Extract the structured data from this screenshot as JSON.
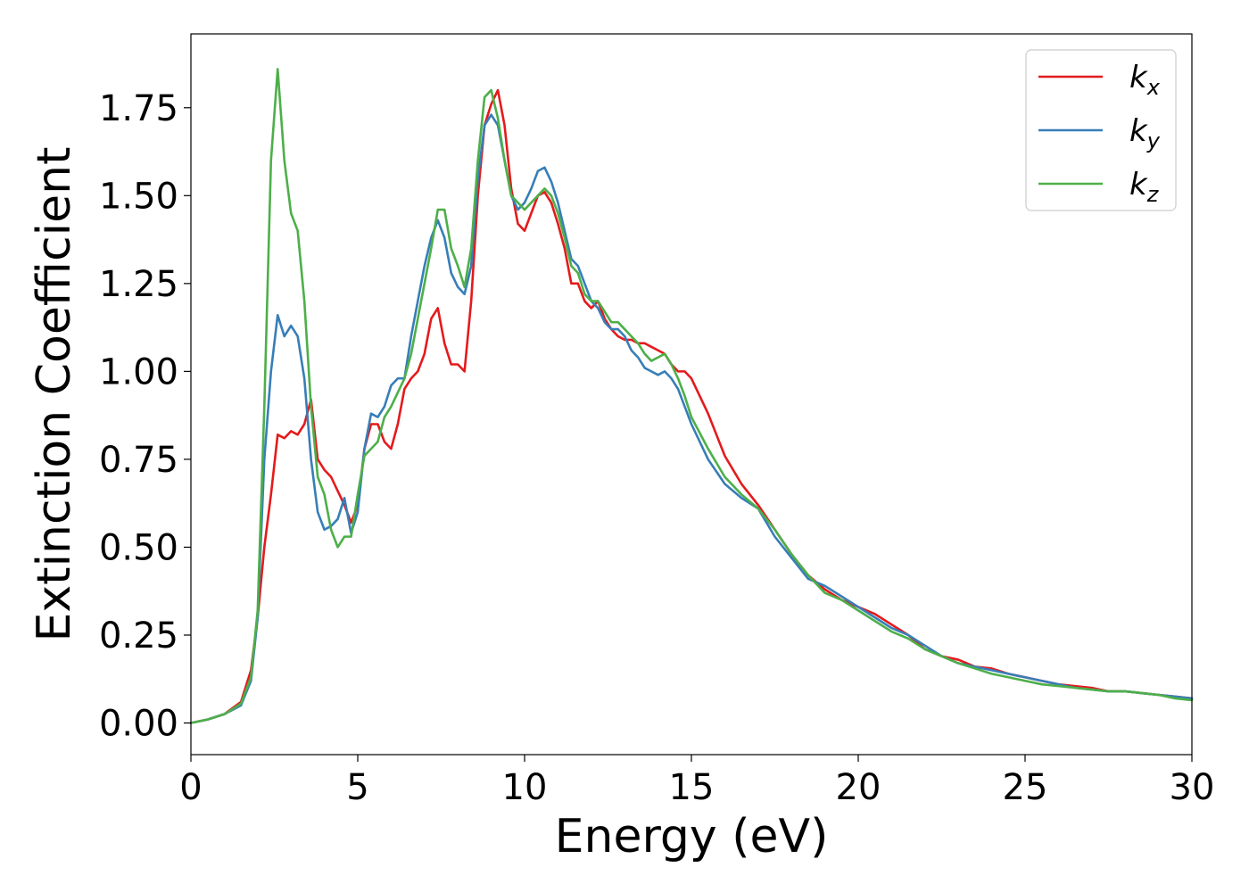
{
  "chart_data": {
    "type": "line",
    "title": "",
    "xlabel": "Energy (eV)",
    "ylabel": "Extinction Coefficient",
    "xlim": [
      0,
      30
    ],
    "ylim": [
      -0.09,
      1.96
    ],
    "xticks": [
      0,
      5,
      10,
      15,
      20,
      25,
      30
    ],
    "xtick_labels": [
      "0",
      "5",
      "10",
      "15",
      "20",
      "25",
      "30"
    ],
    "yticks": [
      0.0,
      0.25,
      0.5,
      0.75,
      1.0,
      1.25,
      1.5,
      1.75
    ],
    "ytick_labels": [
      "0.00",
      "0.25",
      "0.50",
      "0.75",
      "1.00",
      "1.25",
      "1.50",
      "1.75"
    ],
    "grid": false,
    "legend_position": "top-right",
    "series": [
      {
        "name": "k_x",
        "legend_base": "k",
        "legend_sub": "x",
        "color": "#e41a1c",
        "x": [
          0,
          0.5,
          1.0,
          1.5,
          1.8,
          2.0,
          2.2,
          2.4,
          2.6,
          2.8,
          3.0,
          3.2,
          3.4,
          3.6,
          3.8,
          4.0,
          4.2,
          4.4,
          4.6,
          4.8,
          5.0,
          5.2,
          5.4,
          5.6,
          5.8,
          6.0,
          6.2,
          6.4,
          6.6,
          6.8,
          7.0,
          7.2,
          7.4,
          7.6,
          7.8,
          8.0,
          8.2,
          8.4,
          8.6,
          8.8,
          9.0,
          9.2,
          9.4,
          9.6,
          9.8,
          10.0,
          10.2,
          10.4,
          10.6,
          10.8,
          11.0,
          11.2,
          11.4,
          11.6,
          11.8,
          12.0,
          12.2,
          12.4,
          12.6,
          12.8,
          13.0,
          13.2,
          13.4,
          13.6,
          13.8,
          14.0,
          14.2,
          14.4,
          14.6,
          14.8,
          15.0,
          15.5,
          16.0,
          16.5,
          17.0,
          17.5,
          18.0,
          18.5,
          19.0,
          19.5,
          20.0,
          20.5,
          21.0,
          21.5,
          22.0,
          22.5,
          23.0,
          23.5,
          24.0,
          24.5,
          25.0,
          25.5,
          26.0,
          26.5,
          27.0,
          27.5,
          28.0,
          28.5,
          29.0,
          29.5,
          30.0
        ],
        "y": [
          0.0,
          0.01,
          0.025,
          0.06,
          0.15,
          0.3,
          0.5,
          0.65,
          0.82,
          0.81,
          0.83,
          0.82,
          0.85,
          0.92,
          0.75,
          0.72,
          0.7,
          0.66,
          0.62,
          0.57,
          0.62,
          0.78,
          0.85,
          0.85,
          0.8,
          0.78,
          0.85,
          0.95,
          0.98,
          1.0,
          1.05,
          1.15,
          1.18,
          1.08,
          1.02,
          1.02,
          1.0,
          1.2,
          1.5,
          1.7,
          1.76,
          1.8,
          1.7,
          1.52,
          1.42,
          1.4,
          1.45,
          1.5,
          1.51,
          1.48,
          1.42,
          1.35,
          1.25,
          1.25,
          1.2,
          1.18,
          1.2,
          1.15,
          1.12,
          1.1,
          1.09,
          1.09,
          1.08,
          1.08,
          1.07,
          1.06,
          1.05,
          1.02,
          1.0,
          1.0,
          0.98,
          0.88,
          0.76,
          0.68,
          0.62,
          0.55,
          0.48,
          0.42,
          0.38,
          0.35,
          0.33,
          0.31,
          0.28,
          0.25,
          0.21,
          0.19,
          0.18,
          0.16,
          0.155,
          0.14,
          0.13,
          0.12,
          0.11,
          0.105,
          0.1,
          0.09,
          0.09,
          0.085,
          0.08,
          0.075,
          0.07
        ]
      },
      {
        "name": "k_y",
        "legend_base": "k",
        "legend_sub": "y",
        "color": "#377eb8",
        "x": [
          0,
          0.5,
          1.0,
          1.5,
          1.8,
          2.0,
          2.2,
          2.4,
          2.6,
          2.8,
          3.0,
          3.2,
          3.4,
          3.6,
          3.8,
          4.0,
          4.2,
          4.4,
          4.6,
          4.8,
          5.0,
          5.2,
          5.4,
          5.6,
          5.8,
          6.0,
          6.2,
          6.4,
          6.6,
          6.8,
          7.0,
          7.2,
          7.4,
          7.6,
          7.8,
          8.0,
          8.2,
          8.4,
          8.6,
          8.8,
          9.0,
          9.2,
          9.4,
          9.6,
          9.8,
          10.0,
          10.2,
          10.4,
          10.6,
          10.8,
          11.0,
          11.2,
          11.4,
          11.6,
          11.8,
          12.0,
          12.2,
          12.4,
          12.6,
          12.8,
          13.0,
          13.2,
          13.4,
          13.6,
          13.8,
          14.0,
          14.2,
          14.4,
          14.6,
          14.8,
          15.0,
          15.5,
          16.0,
          16.5,
          17.0,
          17.5,
          18.0,
          18.5,
          19.0,
          19.5,
          20.0,
          20.5,
          21.0,
          21.5,
          22.0,
          22.5,
          23.0,
          23.5,
          24.0,
          24.5,
          25.0,
          25.5,
          26.0,
          26.5,
          27.0,
          27.5,
          28.0,
          28.5,
          29.0,
          29.5,
          30.0
        ],
        "y": [
          0.0,
          0.01,
          0.025,
          0.05,
          0.12,
          0.3,
          0.75,
          1.0,
          1.16,
          1.1,
          1.13,
          1.1,
          0.98,
          0.75,
          0.6,
          0.55,
          0.56,
          0.58,
          0.64,
          0.54,
          0.6,
          0.78,
          0.88,
          0.87,
          0.9,
          0.96,
          0.98,
          0.98,
          1.1,
          1.2,
          1.3,
          1.38,
          1.43,
          1.38,
          1.28,
          1.24,
          1.22,
          1.3,
          1.55,
          1.7,
          1.73,
          1.7,
          1.6,
          1.5,
          1.46,
          1.48,
          1.52,
          1.57,
          1.58,
          1.54,
          1.48,
          1.4,
          1.32,
          1.3,
          1.25,
          1.2,
          1.18,
          1.14,
          1.12,
          1.12,
          1.1,
          1.06,
          1.04,
          1.01,
          1.0,
          0.99,
          1.0,
          0.98,
          0.95,
          0.9,
          0.85,
          0.75,
          0.68,
          0.64,
          0.61,
          0.53,
          0.47,
          0.41,
          0.39,
          0.36,
          0.33,
          0.3,
          0.27,
          0.25,
          0.22,
          0.19,
          0.17,
          0.16,
          0.15,
          0.14,
          0.13,
          0.12,
          0.11,
          0.1,
          0.095,
          0.09,
          0.09,
          0.085,
          0.08,
          0.075,
          0.07
        ]
      },
      {
        "name": "k_z",
        "legend_base": "k",
        "legend_sub": "z",
        "color": "#4daf4a",
        "x": [
          0,
          0.5,
          1.0,
          1.5,
          1.8,
          2.0,
          2.2,
          2.4,
          2.6,
          2.8,
          3.0,
          3.2,
          3.4,
          3.6,
          3.8,
          4.0,
          4.2,
          4.4,
          4.6,
          4.8,
          5.0,
          5.2,
          5.4,
          5.6,
          5.8,
          6.0,
          6.2,
          6.4,
          6.6,
          6.8,
          7.0,
          7.2,
          7.4,
          7.6,
          7.8,
          8.0,
          8.2,
          8.4,
          8.6,
          8.8,
          9.0,
          9.2,
          9.4,
          9.6,
          9.8,
          10.0,
          10.2,
          10.4,
          10.6,
          10.8,
          11.0,
          11.2,
          11.4,
          11.6,
          11.8,
          12.0,
          12.2,
          12.4,
          12.6,
          12.8,
          13.0,
          13.2,
          13.4,
          13.6,
          13.8,
          14.0,
          14.2,
          14.4,
          14.6,
          14.8,
          15.0,
          15.5,
          16.0,
          16.5,
          17.0,
          17.5,
          18.0,
          18.5,
          19.0,
          19.5,
          20.0,
          20.5,
          21.0,
          21.5,
          22.0,
          22.5,
          23.0,
          23.5,
          24.0,
          24.5,
          25.0,
          25.5,
          26.0,
          26.5,
          27.0,
          27.5,
          28.0,
          28.5,
          29.0,
          29.5,
          30.0
        ],
        "y": [
          0.0,
          0.01,
          0.025,
          0.055,
          0.13,
          0.32,
          0.9,
          1.6,
          1.86,
          1.6,
          1.45,
          1.4,
          1.2,
          0.9,
          0.7,
          0.65,
          0.55,
          0.5,
          0.53,
          0.53,
          0.65,
          0.76,
          0.78,
          0.8,
          0.87,
          0.9,
          0.94,
          0.98,
          1.05,
          1.15,
          1.25,
          1.35,
          1.46,
          1.46,
          1.35,
          1.3,
          1.24,
          1.35,
          1.6,
          1.78,
          1.8,
          1.72,
          1.6,
          1.5,
          1.48,
          1.46,
          1.48,
          1.5,
          1.52,
          1.5,
          1.45,
          1.38,
          1.3,
          1.28,
          1.22,
          1.2,
          1.2,
          1.17,
          1.14,
          1.14,
          1.12,
          1.1,
          1.08,
          1.05,
          1.03,
          1.04,
          1.05,
          1.02,
          0.98,
          0.93,
          0.87,
          0.78,
          0.7,
          0.65,
          0.61,
          0.55,
          0.48,
          0.42,
          0.37,
          0.35,
          0.32,
          0.29,
          0.26,
          0.24,
          0.21,
          0.19,
          0.17,
          0.155,
          0.14,
          0.13,
          0.12,
          0.11,
          0.105,
          0.1,
          0.095,
          0.09,
          0.09,
          0.085,
          0.08,
          0.07,
          0.065
        ]
      }
    ]
  }
}
